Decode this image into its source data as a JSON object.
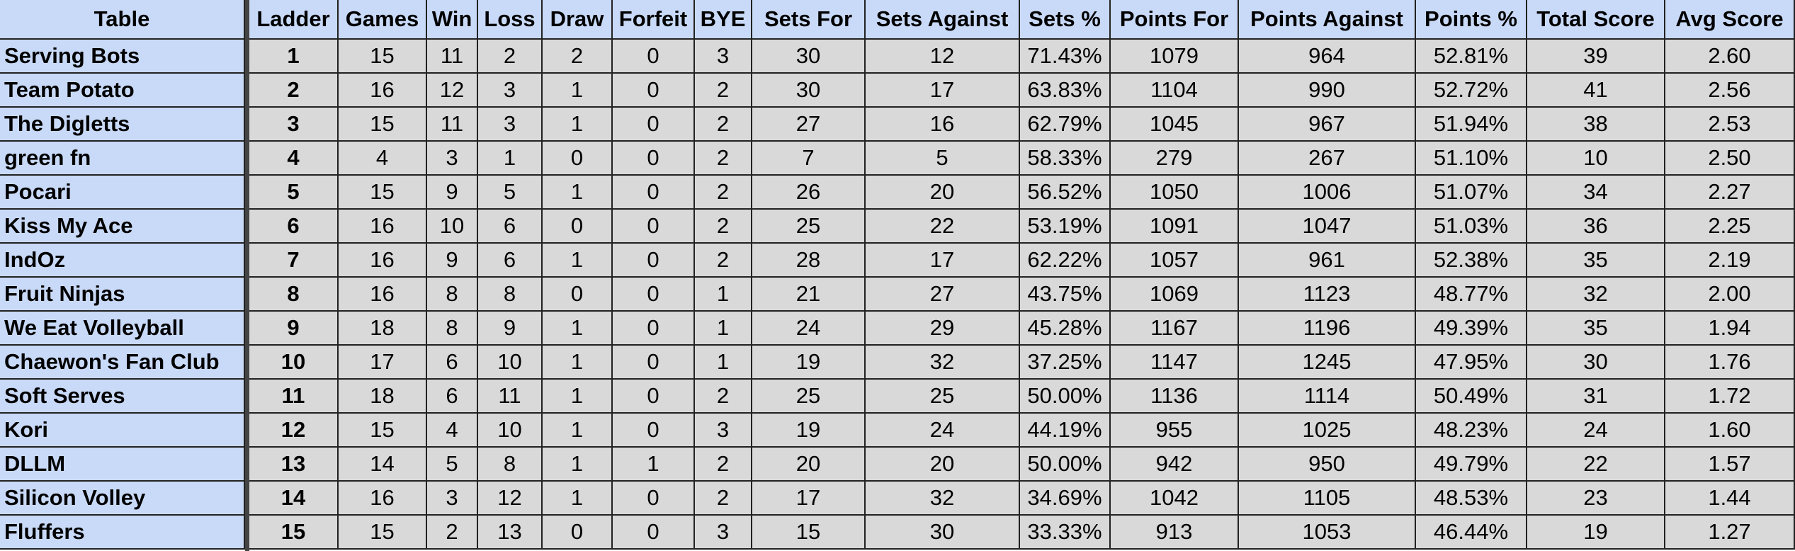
{
  "table": {
    "header": [
      "Table",
      "Ladder",
      "Games",
      "Win",
      "Loss",
      "Draw",
      "Forfeit",
      "BYE",
      "Sets For",
      "Sets Against",
      "Sets %",
      "Points For",
      "Points Against",
      "Points %",
      "Total Score",
      "Avg Score"
    ],
    "rows": [
      [
        "Serving Bots",
        "1",
        "15",
        "11",
        "2",
        "2",
        "0",
        "3",
        "30",
        "12",
        "71.43%",
        "1079",
        "964",
        "52.81%",
        "39",
        "2.60"
      ],
      [
        "Team Potato",
        "2",
        "16",
        "12",
        "3",
        "1",
        "0",
        "2",
        "30",
        "17",
        "63.83%",
        "1104",
        "990",
        "52.72%",
        "41",
        "2.56"
      ],
      [
        "The Digletts",
        "3",
        "15",
        "11",
        "3",
        "1",
        "0",
        "2",
        "27",
        "16",
        "62.79%",
        "1045",
        "967",
        "51.94%",
        "38",
        "2.53"
      ],
      [
        "green fn",
        "4",
        "4",
        "3",
        "1",
        "0",
        "0",
        "2",
        "7",
        "5",
        "58.33%",
        "279",
        "267",
        "51.10%",
        "10",
        "2.50"
      ],
      [
        "Pocari",
        "5",
        "15",
        "9",
        "5",
        "1",
        "0",
        "2",
        "26",
        "20",
        "56.52%",
        "1050",
        "1006",
        "51.07%",
        "34",
        "2.27"
      ],
      [
        "Kiss My Ace",
        "6",
        "16",
        "10",
        "6",
        "0",
        "0",
        "2",
        "25",
        "22",
        "53.19%",
        "1091",
        "1047",
        "51.03%",
        "36",
        "2.25"
      ],
      [
        "IndOz",
        "7",
        "16",
        "9",
        "6",
        "1",
        "0",
        "2",
        "28",
        "17",
        "62.22%",
        "1057",
        "961",
        "52.38%",
        "35",
        "2.19"
      ],
      [
        "Fruit Ninjas",
        "8",
        "16",
        "8",
        "8",
        "0",
        "0",
        "1",
        "21",
        "27",
        "43.75%",
        "1069",
        "1123",
        "48.77%",
        "32",
        "2.00"
      ],
      [
        "We Eat Volleyball",
        "9",
        "18",
        "8",
        "9",
        "1",
        "0",
        "1",
        "24",
        "29",
        "45.28%",
        "1167",
        "1196",
        "49.39%",
        "35",
        "1.94"
      ],
      [
        "Chaewon's Fan Club",
        "10",
        "17",
        "6",
        "10",
        "1",
        "0",
        "1",
        "19",
        "32",
        "37.25%",
        "1147",
        "1245",
        "47.95%",
        "30",
        "1.76"
      ],
      [
        "Soft Serves",
        "11",
        "18",
        "6",
        "11",
        "1",
        "0",
        "2",
        "25",
        "25",
        "50.00%",
        "1136",
        "1114",
        "50.49%",
        "31",
        "1.72"
      ],
      [
        "Kori",
        "12",
        "15",
        "4",
        "10",
        "1",
        "0",
        "3",
        "19",
        "24",
        "44.19%",
        "955",
        "1025",
        "48.23%",
        "24",
        "1.60"
      ],
      [
        "DLLM",
        "13",
        "14",
        "5",
        "8",
        "1",
        "1",
        "2",
        "20",
        "20",
        "50.00%",
        "942",
        "950",
        "49.79%",
        "22",
        "1.57"
      ],
      [
        "Silicon Volley",
        "14",
        "16",
        "3",
        "12",
        "1",
        "0",
        "2",
        "17",
        "32",
        "34.69%",
        "1042",
        "1105",
        "48.53%",
        "23",
        "1.44"
      ],
      [
        "Fluffers",
        "15",
        "15",
        "2",
        "13",
        "0",
        "0",
        "3",
        "15",
        "30",
        "33.33%",
        "913",
        "1053",
        "46.44%",
        "19",
        "1.27"
      ]
    ]
  }
}
